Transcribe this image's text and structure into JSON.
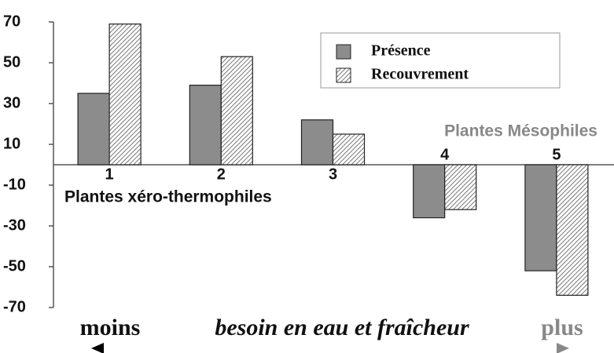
{
  "chart_data": {
    "type": "bar",
    "categories": [
      "1",
      "2",
      "3",
      "4",
      "5"
    ],
    "series": [
      {
        "name": "Présence",
        "color": "#8c8c8c",
        "values": [
          35,
          39,
          22,
          -26,
          -52
        ]
      },
      {
        "name": "Recouvrement",
        "color": "#ffffff",
        "hatch": true,
        "values": [
          69,
          53,
          15,
          -22,
          -64
        ]
      }
    ],
    "ylim": [
      -70,
      70
    ],
    "yticks": [
      70,
      50,
      30,
      10,
      -10,
      -30,
      -50,
      -70
    ],
    "grid": false,
    "annotations": [
      "Plantes xéro-thermophiles",
      "Plantes Mésophiles"
    ],
    "axis_arrow": {
      "left": "moins",
      "label": "besoin en eau et fraîcheur",
      "right": "plus"
    }
  }
}
